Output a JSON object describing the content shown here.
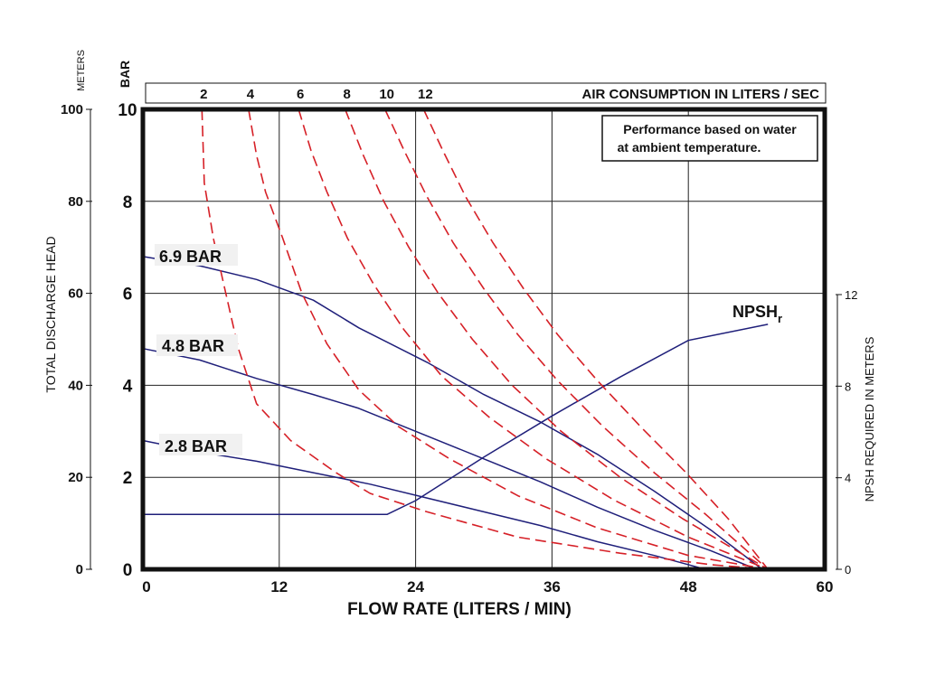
{
  "chart_data": {
    "type": "line",
    "xlabel": "FLOW RATE (LITERS / MIN)",
    "xlim": [
      0,
      60
    ],
    "x_ticks": [
      "0",
      "12",
      "24",
      "36",
      "48",
      "60"
    ],
    "x_tick_values": [
      0,
      12,
      24,
      36,
      48,
      60
    ],
    "left_axis": {
      "unit_label": "METERS",
      "title": "TOTAL DISCHARGE HEAD",
      "ylim": [
        0,
        100
      ],
      "ticks": [
        "0",
        "20",
        "40",
        "60",
        "80",
        "100"
      ],
      "tick_values": [
        0,
        20,
        40,
        60,
        80,
        100
      ]
    },
    "bar_axis": {
      "unit_label": "BAR",
      "ylim": [
        0,
        10
      ],
      "ticks": [
        "0",
        "2",
        "4",
        "6",
        "8",
        "10"
      ],
      "tick_values": [
        0,
        2,
        4,
        6,
        8,
        10
      ]
    },
    "right_axis": {
      "title": "NPSH REQUIRED IN METERS",
      "ticks": [
        "0",
        "4",
        "8",
        "12"
      ],
      "tick_values": [
        0,
        4,
        8,
        12
      ]
    },
    "top_bar": {
      "title": "AIR CONSUMPTION IN LITERS / SEC",
      "labels": [
        "2",
        "4",
        "6",
        "8",
        "10",
        "12"
      ]
    },
    "annotation": {
      "line1": "Performance based on water",
      "line2": "at ambient temperature."
    },
    "grid": true,
    "series": [
      {
        "name": "6.9 BAR",
        "color": "#1f1f7a",
        "style": "solid",
        "label": "6.9 BAR",
        "x": [
          0,
          5,
          10,
          15,
          19,
          25,
          30,
          35,
          40,
          45,
          50,
          54.5
        ],
        "y": [
          68,
          66,
          63,
          58.5,
          52.5,
          45,
          38,
          32,
          25,
          17,
          8.5,
          0
        ]
      },
      {
        "name": "4.8 BAR",
        "color": "#1f1f7a",
        "style": "solid",
        "label": "4.8 BAR",
        "x": [
          0,
          5,
          10,
          15,
          19,
          24,
          30,
          35,
          40,
          45,
          50,
          54
        ],
        "y": [
          48,
          45.5,
          41.5,
          38,
          35,
          30,
          24,
          19,
          13.5,
          8.5,
          4,
          0
        ]
      },
      {
        "name": "2.8 BAR",
        "color": "#1f1f7a",
        "style": "solid",
        "label": "2.8 BAR",
        "x": [
          0,
          5,
          10,
          15,
          20,
          25,
          30,
          35,
          40,
          45,
          49.5
        ],
        "y": [
          28,
          25.5,
          23.5,
          21,
          18.5,
          15.5,
          12.5,
          9.5,
          6,
          3,
          0
        ]
      },
      {
        "name": "NPSHr",
        "color": "#1f1f7a",
        "style": "solid",
        "axis": "npsh",
        "label_main": "NPSH",
        "label_sub": "r",
        "x": [
          0,
          21.5,
          24,
          30,
          36,
          42,
          48,
          55
        ],
        "y": [
          2.4,
          2.4,
          3.0,
          4.9,
          6.7,
          8.4,
          10.0,
          10.7
        ]
      },
      {
        "name": "2",
        "color": "#d62027",
        "style": "dashed",
        "x": [
          5.2,
          5.4,
          6.2,
          7.3,
          8.4,
          10.0,
          13,
          17,
          20,
          25,
          33,
          42,
          50,
          55
        ],
        "y": [
          100,
          84,
          72,
          60,
          48,
          36,
          28,
          21,
          16.5,
          12.5,
          7,
          3.5,
          1,
          0
        ]
      },
      {
        "name": "4",
        "color": "#d62027",
        "style": "dashed",
        "x": [
          9.3,
          10.0,
          10.8,
          12.3,
          14.0,
          16.2,
          19,
          22.5,
          27,
          33,
          40,
          48,
          55
        ],
        "y": [
          100,
          90,
          82,
          72,
          60,
          49,
          39,
          31,
          24,
          16,
          9,
          3,
          0
        ]
      },
      {
        "name": "6",
        "color": "#d62027",
        "style": "dashed",
        "x": [
          13.7,
          14.8,
          16.2,
          18.0,
          20.3,
          23.0,
          26.3,
          30.5,
          35.5,
          41.5,
          48,
          55
        ],
        "y": [
          100,
          91,
          82,
          72,
          62,
          52,
          42,
          33,
          24,
          15,
          7,
          0
        ]
      },
      {
        "name": "8",
        "color": "#d62027",
        "style": "dashed",
        "x": [
          17.8,
          19.4,
          21.2,
          23.4,
          26.0,
          29.0,
          32.5,
          36.8,
          42,
          47.5,
          55
        ],
        "y": [
          100,
          90,
          80,
          70,
          60,
          50,
          40,
          30,
          20,
          11,
          0
        ]
      },
      {
        "name": "10",
        "color": "#d62027",
        "style": "dashed",
        "x": [
          21.3,
          23.0,
          25.0,
          27.3,
          30.0,
          33.0,
          36.5,
          40.5,
          45,
          49.5,
          55
        ],
        "y": [
          100,
          91,
          81,
          71,
          61,
          51,
          41,
          31,
          21,
          12,
          0
        ]
      },
      {
        "name": "12",
        "color": "#d62027",
        "style": "dashed",
        "x": [
          24.7,
          26.4,
          28.4,
          30.8,
          33.5,
          36.5,
          40,
          43.8,
          47.8,
          51.5,
          55
        ],
        "y": [
          100,
          91,
          81,
          71,
          61,
          51,
          41,
          31,
          21,
          11,
          0
        ]
      }
    ]
  }
}
